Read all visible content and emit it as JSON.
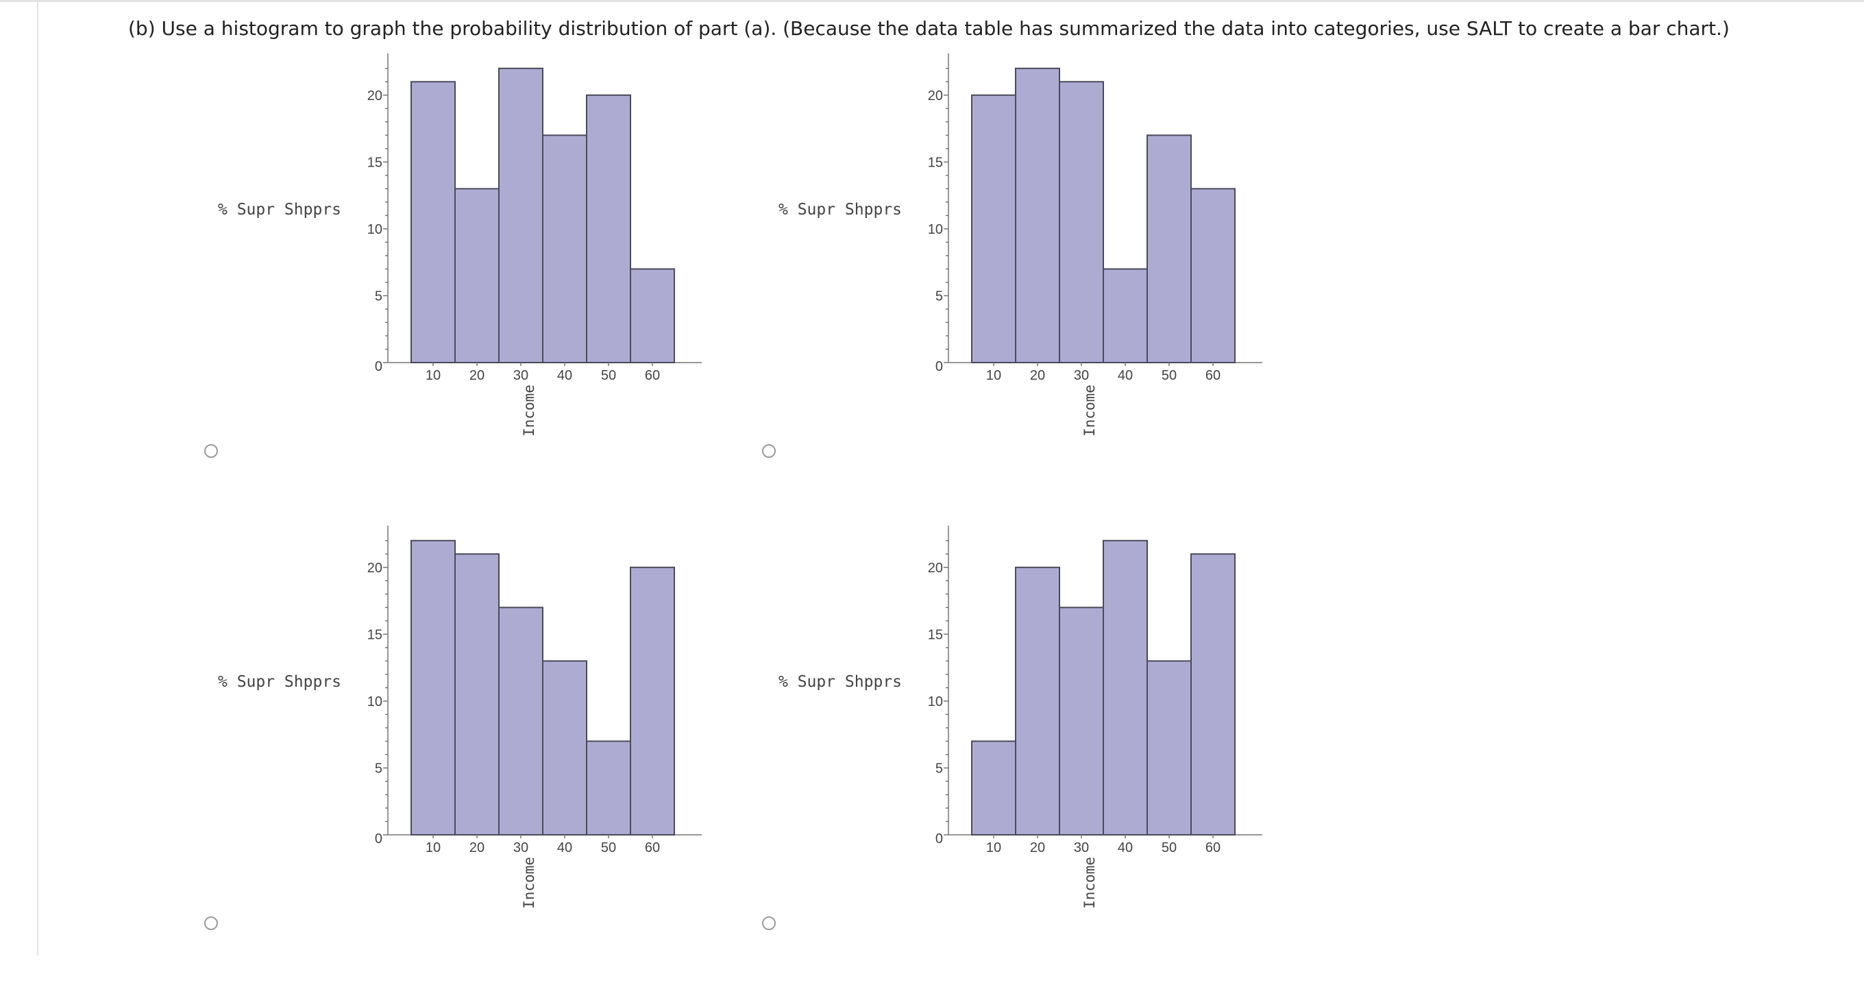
{
  "question": {
    "text": "(b) Use a histogram to graph the probability distribution of part (a). (Because the data table has summarized the data into categories, use SALT to create a bar chart.)"
  },
  "chart_data": [
    {
      "type": "bar",
      "option": "A",
      "categories": [
        "10",
        "20",
        "30",
        "40",
        "50",
        "60"
      ],
      "values": [
        21,
        13,
        22,
        17,
        20,
        7
      ],
      "ylabel": "% Supr Shpprs",
      "xlabel": "Income",
      "yticks": [
        0,
        5,
        10,
        15,
        20
      ],
      "ylim": [
        0,
        22.5
      ]
    },
    {
      "type": "bar",
      "option": "B",
      "categories": [
        "10",
        "20",
        "30",
        "40",
        "50",
        "60"
      ],
      "values": [
        20,
        22,
        21,
        7,
        17,
        13
      ],
      "ylabel": "% Supr Shpprs",
      "xlabel": "Income",
      "yticks": [
        0,
        5,
        10,
        15,
        20
      ],
      "ylim": [
        0,
        22.5
      ]
    },
    {
      "type": "bar",
      "option": "C",
      "categories": [
        "10",
        "20",
        "30",
        "40",
        "50",
        "60"
      ],
      "values": [
        22,
        21,
        17,
        13,
        7,
        20
      ],
      "ylabel": "% Supr Shpprs",
      "xlabel": "Income",
      "yticks": [
        0,
        5,
        10,
        15,
        20
      ],
      "ylim": [
        0,
        22.5
      ]
    },
    {
      "type": "bar",
      "option": "D",
      "categories": [
        "10",
        "20",
        "30",
        "40",
        "50",
        "60"
      ],
      "values": [
        7,
        20,
        17,
        22,
        13,
        21
      ],
      "ylabel": "% Supr Shpprs",
      "xlabel": "Income",
      "yticks": [
        0,
        5,
        10,
        15,
        20
      ],
      "ylim": [
        0,
        22.5
      ]
    }
  ]
}
